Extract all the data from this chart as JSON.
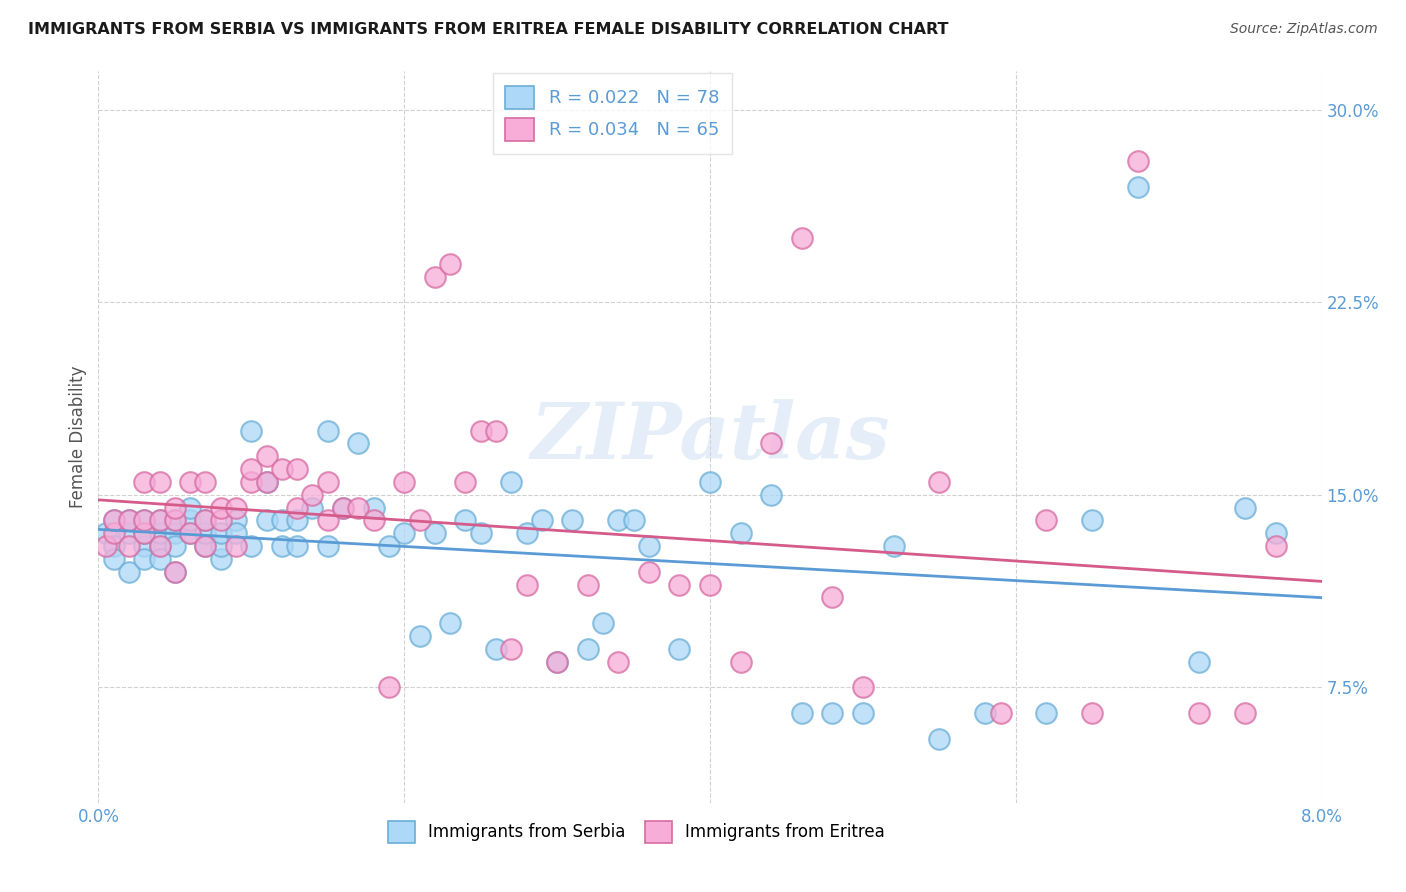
{
  "title": "IMMIGRANTS FROM SERBIA VS IMMIGRANTS FROM ERITREA FEMALE DISABILITY CORRELATION CHART",
  "source": "Source: ZipAtlas.com",
  "ylabel": "Female Disability",
  "yticks_labels": [
    "30.0%",
    "22.5%",
    "15.0%",
    "7.5%"
  ],
  "ytick_vals": [
    0.3,
    0.225,
    0.15,
    0.075
  ],
  "xmin": 0.0,
  "xmax": 0.08,
  "ymin": 0.03,
  "ymax": 0.315,
  "serbia_color_fill": "#add8f7",
  "eritrea_color_fill": "#f7add8",
  "serbia_edge_color": "#6baed6",
  "eritrea_edge_color": "#d66ba1",
  "serbia_line_color": "#5b9bd5",
  "eritrea_line_color": "#d55b8a",
  "legend_r1": "R = 0.022",
  "legend_n1": "N = 78",
  "legend_r2": "R = 0.034",
  "legend_n2": "N = 65",
  "watermark": "ZIPatlas",
  "label_serbia": "Immigrants from Serbia",
  "label_eritrea": "Immigrants from Eritrea",
  "serbia_x": [
    0.0005,
    0.001,
    0.001,
    0.001,
    0.002,
    0.002,
    0.002,
    0.003,
    0.003,
    0.003,
    0.003,
    0.004,
    0.004,
    0.004,
    0.004,
    0.005,
    0.005,
    0.005,
    0.005,
    0.006,
    0.006,
    0.006,
    0.007,
    0.007,
    0.007,
    0.008,
    0.008,
    0.008,
    0.009,
    0.009,
    0.01,
    0.01,
    0.011,
    0.011,
    0.012,
    0.012,
    0.013,
    0.013,
    0.014,
    0.015,
    0.015,
    0.016,
    0.017,
    0.018,
    0.019,
    0.02,
    0.021,
    0.022,
    0.023,
    0.025,
    0.026,
    0.028,
    0.03,
    0.032,
    0.034,
    0.035,
    0.038,
    0.04,
    0.042,
    0.044,
    0.046,
    0.048,
    0.05,
    0.052,
    0.055,
    0.058,
    0.062,
    0.065,
    0.068,
    0.072,
    0.075,
    0.077,
    0.031,
    0.033,
    0.036,
    0.029,
    0.027,
    0.024
  ],
  "serbia_y": [
    0.135,
    0.13,
    0.125,
    0.14,
    0.135,
    0.14,
    0.12,
    0.13,
    0.135,
    0.14,
    0.125,
    0.13,
    0.135,
    0.125,
    0.14,
    0.12,
    0.135,
    0.13,
    0.14,
    0.135,
    0.14,
    0.145,
    0.13,
    0.135,
    0.14,
    0.125,
    0.13,
    0.135,
    0.14,
    0.135,
    0.13,
    0.175,
    0.14,
    0.155,
    0.13,
    0.14,
    0.13,
    0.14,
    0.145,
    0.13,
    0.175,
    0.145,
    0.17,
    0.145,
    0.13,
    0.135,
    0.095,
    0.135,
    0.1,
    0.135,
    0.09,
    0.135,
    0.085,
    0.09,
    0.14,
    0.14,
    0.09,
    0.155,
    0.135,
    0.15,
    0.065,
    0.065,
    0.065,
    0.13,
    0.055,
    0.065,
    0.065,
    0.14,
    0.27,
    0.085,
    0.145,
    0.135,
    0.14,
    0.1,
    0.13,
    0.14,
    0.155,
    0.14
  ],
  "eritrea_x": [
    0.0005,
    0.001,
    0.001,
    0.002,
    0.002,
    0.003,
    0.003,
    0.003,
    0.004,
    0.004,
    0.004,
    0.005,
    0.005,
    0.005,
    0.006,
    0.006,
    0.007,
    0.007,
    0.007,
    0.008,
    0.008,
    0.009,
    0.009,
    0.01,
    0.01,
    0.011,
    0.011,
    0.012,
    0.013,
    0.013,
    0.014,
    0.015,
    0.015,
    0.016,
    0.017,
    0.018,
    0.019,
    0.02,
    0.021,
    0.022,
    0.023,
    0.024,
    0.025,
    0.026,
    0.027,
    0.028,
    0.03,
    0.032,
    0.034,
    0.036,
    0.038,
    0.04,
    0.042,
    0.044,
    0.046,
    0.048,
    0.05,
    0.055,
    0.059,
    0.062,
    0.065,
    0.068,
    0.072,
    0.075,
    0.077
  ],
  "eritrea_y": [
    0.13,
    0.135,
    0.14,
    0.13,
    0.14,
    0.135,
    0.14,
    0.155,
    0.13,
    0.14,
    0.155,
    0.12,
    0.14,
    0.145,
    0.135,
    0.155,
    0.13,
    0.14,
    0.155,
    0.14,
    0.145,
    0.13,
    0.145,
    0.155,
    0.16,
    0.155,
    0.165,
    0.16,
    0.145,
    0.16,
    0.15,
    0.14,
    0.155,
    0.145,
    0.145,
    0.14,
    0.075,
    0.155,
    0.14,
    0.235,
    0.24,
    0.155,
    0.175,
    0.175,
    0.09,
    0.115,
    0.085,
    0.115,
    0.085,
    0.12,
    0.115,
    0.115,
    0.085,
    0.17,
    0.25,
    0.11,
    0.075,
    0.155,
    0.065,
    0.14,
    0.065,
    0.28,
    0.065,
    0.065,
    0.13
  ]
}
